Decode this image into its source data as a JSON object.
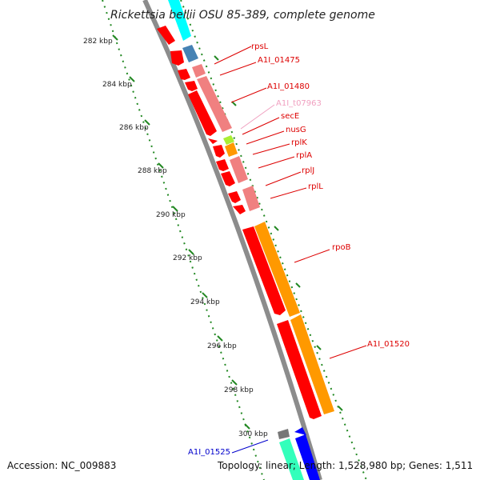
{
  "title": "Rickettsia bellii OSU 85-389, complete genome",
  "footer": {
    "accession": "Accession: NC_009883",
    "summary": "Topology: linear; Length: 1,528,980 bp; Genes: 1,511"
  },
  "scale_labels": [
    "282 kbp",
    "284 kbp",
    "286 kbp",
    "288 kbp",
    "290 kbp",
    "292 kbp",
    "294 kbp",
    "296 kbp",
    "298 kbp",
    "300 kbp"
  ],
  "gene_labels": [
    {
      "text": "rpsL",
      "color": "#dd0000"
    },
    {
      "text": "A1I_01475",
      "color": "#dd0000"
    },
    {
      "text": "A1I_01480",
      "color": "#dd0000"
    },
    {
      "text": "A1I_t07963",
      "color": "#f0a0c0"
    },
    {
      "text": "secE",
      "color": "#dd0000"
    },
    {
      "text": "nusG",
      "color": "#dd0000"
    },
    {
      "text": "rplK",
      "color": "#dd0000"
    },
    {
      "text": "rplA",
      "color": "#dd0000"
    },
    {
      "text": "rplJ",
      "color": "#dd0000"
    },
    {
      "text": "rplL",
      "color": "#dd0000"
    },
    {
      "text": "rpoB",
      "color": "#dd0000"
    },
    {
      "text": "A1I_01520",
      "color": "#dd0000"
    },
    {
      "text": "A1I_01525",
      "color": "#0000cc"
    }
  ],
  "colors": {
    "backbone": "#8c8c8c",
    "tick": "#228822",
    "gene_red": "#ff0000",
    "gene_pink": "#f08080",
    "gene_orange": "#ff9900",
    "gene_cyan": "#00ffff",
    "gene_steelblue": "#4682b4",
    "gene_yellowgreen": "#aaee33",
    "gene_teal": "#33ffbb",
    "gene_blue": "#0000ff",
    "gene_gray": "#777777"
  }
}
